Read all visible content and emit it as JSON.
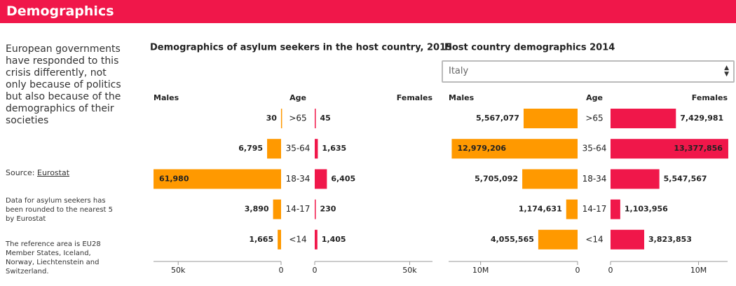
{
  "header": {
    "title": "Demographics"
  },
  "sidebar": {
    "intro": "European governments have responded to this crisis differently, not only because of politics but also because of the demographics of their societies",
    "source_label": "Source:",
    "source_link": "Eurostat",
    "note_1": "Data for asylum seekers has been rounded to the nearest 5 by Eurostat",
    "note_2": "The reference area is EU28 Member States, Iceland, Norway, Liechtenstein and Switzerland."
  },
  "chart_data": [
    {
      "type": "pyramid",
      "title": "Demographics of asylum seekers in the host country, 2015",
      "category_label": "Age",
      "categories": [
        ">65",
        "35-64",
        "18-34",
        "14-17",
        "<14"
      ],
      "series": [
        {
          "name": "Males",
          "color": "#ff9900",
          "values": [
            30,
            6795,
            61980,
            3890,
            1665
          ],
          "value_labels": [
            "30",
            "6,795",
            "61,980",
            "3,890",
            "1,665"
          ]
        },
        {
          "name": "Females",
          "color": "#f0174a",
          "values": [
            45,
            1635,
            6405,
            230,
            1405
          ],
          "value_labels": [
            "45",
            "1,635",
            "6,405",
            "230",
            "1,405"
          ]
        }
      ],
      "xlim": [
        0,
        62000
      ],
      "xticks": [
        0,
        {
          "value": 50000,
          "label": "50k"
        }
      ]
    },
    {
      "type": "pyramid",
      "title": "Host country demographics 2014",
      "selector": "Italy",
      "category_label": "Age",
      "categories": [
        ">65",
        "35-64",
        "18-34",
        "14-17",
        "<14"
      ],
      "series": [
        {
          "name": "Males",
          "color": "#ff9900",
          "values": [
            5567077,
            12979206,
            5705092,
            1174631,
            4055565
          ],
          "value_labels": [
            "5,567,077",
            "12,979,206",
            "5,705,092",
            "1,174,631",
            "4,055,565"
          ]
        },
        {
          "name": "Females",
          "color": "#f0174a",
          "values": [
            7429981,
            13377856,
            5547567,
            1103956,
            3823853
          ],
          "value_labels": [
            "7,429,981",
            "13,377,856",
            "5,547,567",
            "1,103,956",
            "3,823,853"
          ]
        }
      ],
      "xlim": [
        0,
        13300000
      ],
      "xticks": [
        0,
        {
          "value": 10000000,
          "label": "10M"
        }
      ]
    }
  ]
}
